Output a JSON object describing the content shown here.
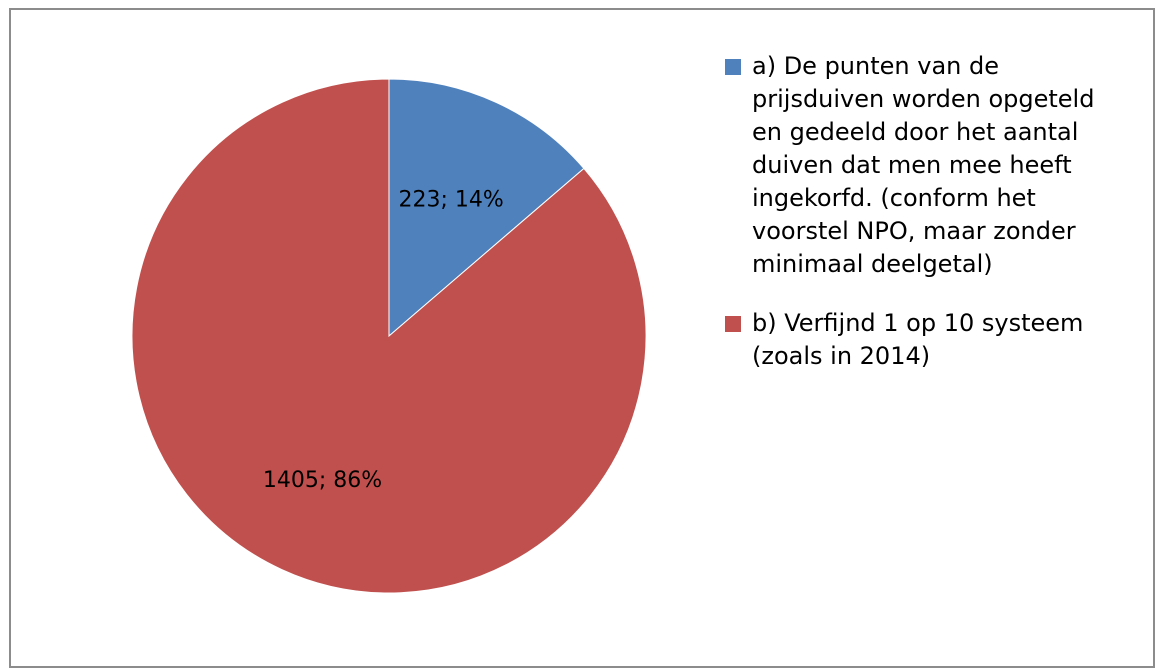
{
  "chart_data": {
    "type": "pie",
    "slices": [
      {
        "label": "a) De punten van de prijsduiven worden opgeteld en gedeeld door het aantal duiven dat men mee heeft ingekorfd. (conform het voorstel NPO, maar zonder minimaal deelgetal)",
        "legend_lines": [
          "a) De punten van de",
          "prijsduiven worden opgeteld",
          "en gedeeld door het aantal",
          "duiven dat men mee heeft",
          "ingekorfd. (conform het",
          "voorstel NPO, maar zonder",
          "minimaal deelgetal)"
        ],
        "value": 223,
        "percent": 14,
        "data_label": "223; 14%",
        "color": "#4f81bd"
      },
      {
        "label": "b) Verfijnd 1 op 10 systeem (zoals in 2014)",
        "legend_lines": [
          "b) Verfijnd 1 op 10 systeem",
          "(zoals in 2014)"
        ],
        "value": 1405,
        "percent": 86,
        "data_label": "1405; 86%",
        "color": "#c0504d"
      }
    ],
    "legend_position": "right"
  }
}
